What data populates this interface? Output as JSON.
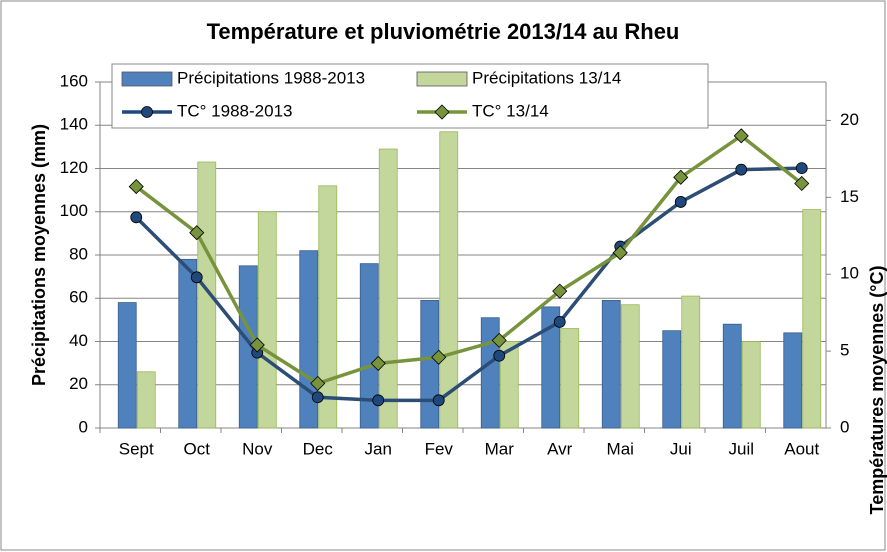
{
  "chart_data": {
    "type": "bar-line",
    "title": "Température et pluviométrie 2013/14 au Rheu",
    "y_label": "Précipitations moyennes (mm)",
    "y2_label": "Températures moyennes (°C)",
    "categories": [
      "Sept",
      "Oct",
      "Nov",
      "Dec",
      "Jan",
      "Fev",
      "Mar",
      "Avr",
      "Mai",
      "Jui",
      "Juil",
      "Aout"
    ],
    "series": [
      {
        "name": "Précipitations 1988-2013",
        "kind": "bar",
        "color": "#4f81bd",
        "values": [
          58,
          78,
          75,
          82,
          76,
          59,
          51,
          56,
          59,
          45,
          48,
          44
        ]
      },
      {
        "name": "Précipitations 13/14",
        "kind": "bar",
        "color": "#c3d69b",
        "values": [
          26,
          123,
          100,
          112,
          129,
          137,
          40,
          46,
          57,
          61,
          40,
          101
        ]
      },
      {
        "name": "TC° 1988-2013",
        "kind": "line",
        "axis": "y2",
        "color": "#1f497d",
        "marker": "circle",
        "values": [
          13.7,
          9.8,
          4.9,
          2.0,
          1.8,
          1.8,
          4.7,
          6.9,
          11.8,
          14.7,
          16.8,
          16.9
        ]
      },
      {
        "name": "TC° 13/14",
        "kind": "line",
        "axis": "y2",
        "color": "#77933c",
        "marker": "diamond",
        "values": [
          15.7,
          12.7,
          5.4,
          2.9,
          4.2,
          4.6,
          5.7,
          8.9,
          11.4,
          16.3,
          19.0,
          15.9
        ]
      }
    ],
    "ylim": [
      0,
      160
    ],
    "yticks": [
      0,
      20,
      40,
      60,
      80,
      100,
      120,
      140,
      160
    ],
    "y2lim": [
      0,
      22.5
    ],
    "y2ticks": [
      0,
      5,
      10,
      15,
      20
    ],
    "grid": true
  }
}
